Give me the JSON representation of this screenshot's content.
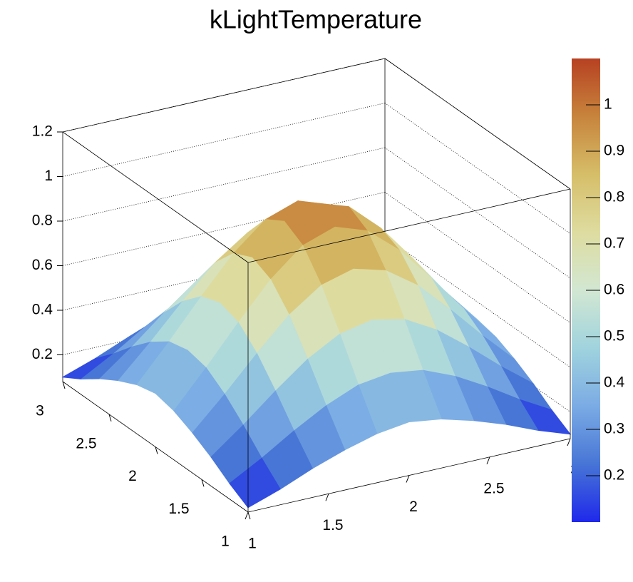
{
  "chart_data": {
    "type": "surface",
    "title": "kLightTemperature",
    "x": [
      1,
      1.2,
      1.4,
      1.6,
      1.8,
      2,
      2.2,
      2.4,
      2.6,
      2.8,
      3
    ],
    "y": [
      1,
      1.2,
      1.4,
      1.6,
      1.8,
      2,
      2.2,
      2.4,
      2.6,
      2.8,
      3
    ],
    "z": [
      [
        0.1,
        0.15,
        0.21,
        0.26,
        0.3,
        0.32,
        0.3,
        0.26,
        0.21,
        0.15,
        0.1
      ],
      [
        0.15,
        0.23,
        0.32,
        0.4,
        0.46,
        0.48,
        0.46,
        0.4,
        0.32,
        0.23,
        0.15
      ],
      [
        0.21,
        0.32,
        0.44,
        0.55,
        0.63,
        0.66,
        0.63,
        0.55,
        0.44,
        0.32,
        0.21
      ],
      [
        0.26,
        0.4,
        0.55,
        0.69,
        0.79,
        0.83,
        0.79,
        0.69,
        0.55,
        0.4,
        0.26
      ],
      [
        0.3,
        0.46,
        0.63,
        0.79,
        0.91,
        0.96,
        0.91,
        0.79,
        0.63,
        0.46,
        0.3
      ],
      [
        0.32,
        0.48,
        0.66,
        0.83,
        0.96,
        1.0,
        0.96,
        0.83,
        0.66,
        0.48,
        0.32
      ],
      [
        0.3,
        0.46,
        0.63,
        0.79,
        0.91,
        0.96,
        0.91,
        0.79,
        0.63,
        0.46,
        0.3
      ],
      [
        0.26,
        0.4,
        0.55,
        0.69,
        0.79,
        0.83,
        0.79,
        0.69,
        0.55,
        0.4,
        0.26
      ],
      [
        0.21,
        0.32,
        0.44,
        0.55,
        0.63,
        0.66,
        0.63,
        0.55,
        0.44,
        0.32,
        0.21
      ],
      [
        0.15,
        0.23,
        0.32,
        0.4,
        0.46,
        0.48,
        0.46,
        0.4,
        0.32,
        0.23,
        0.15
      ],
      [
        0.1,
        0.15,
        0.21,
        0.26,
        0.3,
        0.32,
        0.3,
        0.26,
        0.21,
        0.15,
        0.1
      ]
    ],
    "xlim": [
      1,
      3
    ],
    "ylim": [
      1,
      3
    ],
    "zlim": [
      0.08,
      1.2
    ],
    "xticks": [
      1,
      1.5,
      2,
      2.5,
      3
    ],
    "yticks": [
      1,
      1.5,
      2,
      2.5,
      3
    ],
    "zticks": [
      0.2,
      0.4,
      0.6,
      0.8,
      1,
      1.2
    ],
    "grid": true,
    "palette": [
      "#1f28ea",
      "#4775d6",
      "#7babe4",
      "#a0d3de",
      "#d2e7d2",
      "#dedca0",
      "#d6be69",
      "#c7843c",
      "#b74122"
    ],
    "colorbar": {
      "lim": [
        0.1,
        1.1
      ],
      "ticks": [
        0.2,
        0.3,
        0.4,
        0.5,
        0.6,
        0.7,
        0.8,
        0.9,
        1
      ]
    }
  }
}
